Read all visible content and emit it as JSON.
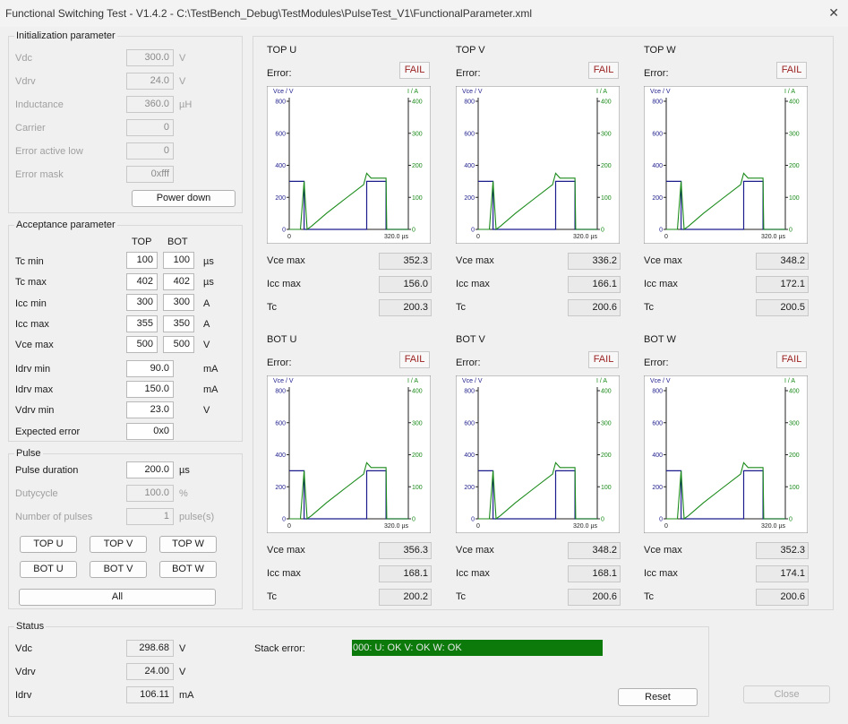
{
  "window": {
    "title": "Functional Switching Test - V1.4.2 - C:\\TestBench_Debug\\TestModules\\PulseTest_V1\\FunctionalParameter.xml",
    "close_glyph": "✕"
  },
  "init": {
    "legend": "Initialization parameter",
    "vdc": {
      "label": "Vdc",
      "value": "300.0",
      "unit": "V"
    },
    "vdrv": {
      "label": "Vdrv",
      "value": "24.0",
      "unit": "V"
    },
    "inductance": {
      "label": "Inductance",
      "value": "360.0",
      "unit": "µH"
    },
    "carrier": {
      "label": "Carrier",
      "value": "0"
    },
    "error_active_low": {
      "label": "Error active low",
      "value": "0"
    },
    "error_mask": {
      "label": "Error mask",
      "value": "0xfff"
    },
    "power_down": "Power down"
  },
  "accept": {
    "legend": "Acceptance parameter",
    "col_top": "TOP",
    "col_bot": "BOT",
    "rows": [
      {
        "label": "Tc min",
        "top": "100",
        "bot": "100",
        "unit": "µs"
      },
      {
        "label": "Tc max",
        "top": "402",
        "bot": "402",
        "unit": "µs"
      },
      {
        "label": "Icc min",
        "top": "300",
        "bot": "300",
        "unit": "A"
      },
      {
        "label": "Icc max",
        "top": "355",
        "bot": "350",
        "unit": "A"
      },
      {
        "label": "Vce max",
        "top": "500",
        "bot": "500",
        "unit": "V"
      }
    ],
    "idrv_min": {
      "label": "Idrv min",
      "value": "90.0",
      "unit": "mA"
    },
    "idrv_max": {
      "label": "Idrv max",
      "value": "150.0",
      "unit": "mA"
    },
    "vdrv_min": {
      "label": "Vdrv min",
      "value": "23.0",
      "unit": "V"
    },
    "expected_error": {
      "label": "Expected error",
      "value": "0x0"
    }
  },
  "pulse": {
    "legend": "Pulse",
    "duration": {
      "label": "Pulse duration",
      "value": "200.0",
      "unit": "µs"
    },
    "dutycycle": {
      "label": "Dutycycle",
      "value": "100.0",
      "unit": "%"
    },
    "num_pulses": {
      "label": "Number of pulses",
      "value": "1",
      "unit": "pulse(s)"
    },
    "buttons": [
      "TOP U",
      "TOP V",
      "TOP W",
      "BOT U",
      "BOT V",
      "BOT W"
    ],
    "all_button": "All"
  },
  "results": {
    "error_label": "Error:",
    "fail_label": "FAIL",
    "vce_label": "Vce max",
    "icc_label": "Icc max",
    "tc_label": "Tc",
    "cells": [
      {
        "name": "TOP U",
        "vce": "352.3",
        "icc": "156.0",
        "tc": "200.3"
      },
      {
        "name": "TOP V",
        "vce": "336.2",
        "icc": "166.1",
        "tc": "200.6"
      },
      {
        "name": "TOP W",
        "vce": "348.2",
        "icc": "172.1",
        "tc": "200.5"
      },
      {
        "name": "BOT U",
        "vce": "356.3",
        "icc": "168.1",
        "tc": "200.2"
      },
      {
        "name": "BOT V",
        "vce": "348.2",
        "icc": "168.1",
        "tc": "200.6"
      },
      {
        "name": "BOT W",
        "vce": "352.3",
        "icc": "174.1",
        "tc": "200.6"
      }
    ],
    "chart": {
      "left_axis_label": "Vce / V",
      "right_axis_label": "I / A",
      "left_ticks": [
        "800",
        "600",
        "400",
        "200",
        "0"
      ],
      "right_ticks": [
        "400",
        "300",
        "200",
        "100",
        "0"
      ],
      "x_start": "0",
      "x_end": "320.0 µs"
    }
  },
  "status": {
    "legend": "Status",
    "vdc": {
      "label": "Vdc",
      "value": "298.68",
      "unit": "V"
    },
    "vdrv": {
      "label": "Vdrv",
      "value": "24.00",
      "unit": "V"
    },
    "idrv": {
      "label": "Idrv",
      "value": "106.11",
      "unit": "mA"
    },
    "stack_error_label": "Stack error:",
    "stack_error_value": "000: U: OK V: OK W: OK",
    "reset": "Reset"
  },
  "close_button": "Close",
  "colors": {
    "vce_trace": "#1c1c8c",
    "current_trace": "#1a8a1a",
    "stack_ok": "#0b7a0b",
    "fail_text": "#9a1f1f"
  },
  "chart_data": {
    "type": "line",
    "xlabel": "",
    "x_range_us": [
      0,
      320.0
    ],
    "left_axis": {
      "label": "Vce / V",
      "ylim": [
        0,
        800
      ]
    },
    "right_axis": {
      "label": "I / A",
      "ylim": [
        0,
        400
      ]
    },
    "series": [
      {
        "name": "Vce / V",
        "axis": "left",
        "points": [
          [
            0,
            300
          ],
          [
            40,
            300
          ],
          [
            40,
            0
          ],
          [
            208,
            0
          ],
          [
            208,
            300
          ],
          [
            260,
            300
          ],
          [
            260,
            0
          ],
          [
            320,
            0
          ]
        ]
      },
      {
        "name": "I / A",
        "axis": "right",
        "points": [
          [
            0,
            0
          ],
          [
            30,
            0
          ],
          [
            40,
            150
          ],
          [
            48,
            0
          ],
          [
            60,
            10
          ],
          [
            100,
            50
          ],
          [
            150,
            95
          ],
          [
            200,
            140
          ],
          [
            208,
            175
          ],
          [
            220,
            160
          ],
          [
            260,
            160
          ],
          [
            262,
            0
          ],
          [
            320,
            0
          ]
        ]
      }
    ]
  }
}
